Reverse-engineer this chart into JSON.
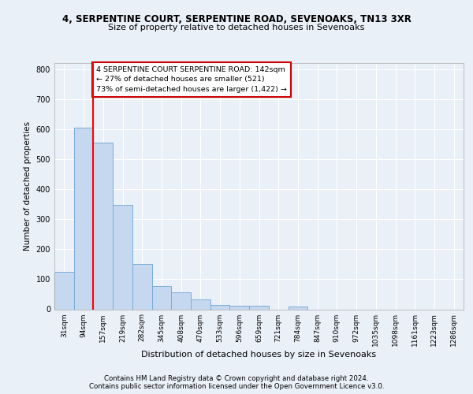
{
  "title1": "4, SERPENTINE COURT, SERPENTINE ROAD, SEVENOAKS, TN13 3XR",
  "title2": "Size of property relative to detached houses in Sevenoaks",
  "xlabel": "Distribution of detached houses by size in Sevenoaks",
  "ylabel": "Number of detached properties",
  "categories": [
    "31sqm",
    "94sqm",
    "157sqm",
    "219sqm",
    "282sqm",
    "345sqm",
    "408sqm",
    "470sqm",
    "533sqm",
    "596sqm",
    "659sqm",
    "721sqm",
    "784sqm",
    "847sqm",
    "910sqm",
    "972sqm",
    "1035sqm",
    "1098sqm",
    "1161sqm",
    "1223sqm",
    "1286sqm"
  ],
  "values": [
    125,
    605,
    555,
    348,
    150,
    77,
    56,
    33,
    15,
    13,
    11,
    0,
    8,
    0,
    0,
    0,
    0,
    0,
    0,
    0,
    0
  ],
  "bar_color": "#c5d8f0",
  "bar_edge_color": "#7aadd4",
  "annotation_title": "4 SERPENTINE COURT SERPENTINE ROAD: 142sqm",
  "annotation_line1": "← 27% of detached houses are smaller (521)",
  "annotation_line2": "73% of semi-detached houses are larger (1,422) →",
  "annotation_box_color": "#ffffff",
  "annotation_box_edge": "#cc0000",
  "red_line_index": 1.5,
  "ylim": [
    0,
    820
  ],
  "yticks": [
    0,
    100,
    200,
    300,
    400,
    500,
    600,
    700,
    800
  ],
  "footer1": "Contains HM Land Registry data © Crown copyright and database right 2024.",
  "footer2": "Contains public sector information licensed under the Open Government Licence v3.0.",
  "bg_color": "#eaf0f8",
  "plot_bg_color": "#eaf0f8"
}
